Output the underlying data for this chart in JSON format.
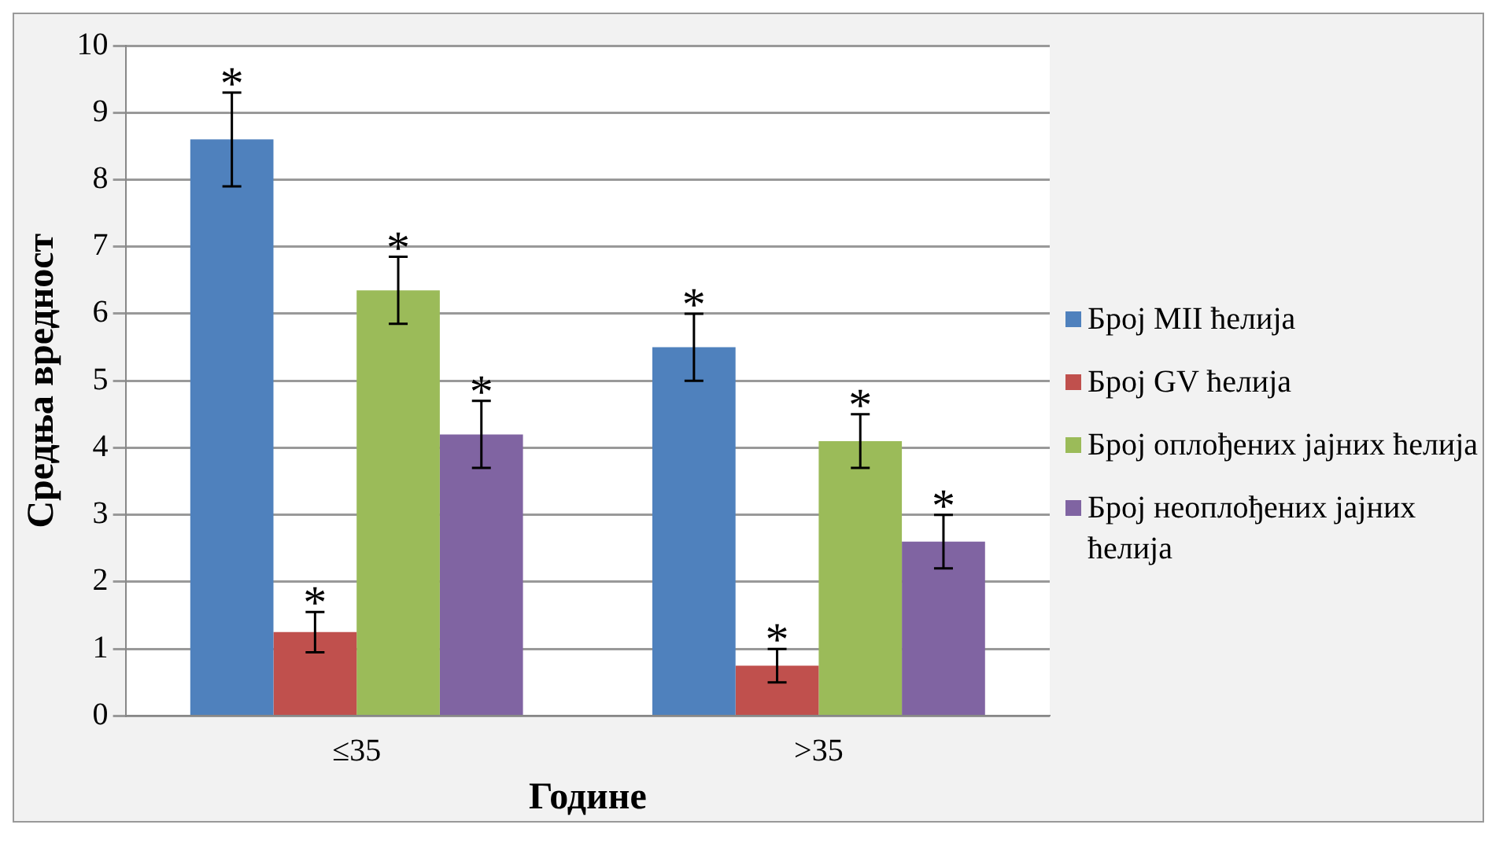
{
  "chart_data": {
    "type": "bar",
    "xlabel": "Године",
    "ylabel": "Средња вредност",
    "categories": [
      "≤35",
      ">35"
    ],
    "series": [
      {
        "name": "Број MII ћелија",
        "color": "#4f81bd",
        "values": [
          8.6,
          5.5
        ],
        "errors": [
          0.7,
          0.5
        ]
      },
      {
        "name": "Број GV ћелија",
        "color": "#c0504d",
        "values": [
          1.25,
          0.75
        ],
        "errors": [
          0.3,
          0.25
        ]
      },
      {
        "name": "Број оплођених јајних ћелија",
        "color": "#9bbb59",
        "values": [
          6.35,
          4.1
        ],
        "errors": [
          0.5,
          0.4
        ]
      },
      {
        "name": "Број неоплођених јајних ћелија",
        "color": "#8064a2",
        "values": [
          4.2,
          2.6
        ],
        "errors": [
          0.5,
          0.4
        ]
      }
    ],
    "ylim": [
      0,
      10
    ],
    "yticks": [
      0,
      1,
      2,
      3,
      4,
      5,
      6,
      7,
      8,
      9,
      10
    ],
    "grid": "y",
    "legend": "right",
    "annotations": [
      "*",
      "*",
      "*",
      "*",
      "*",
      "*",
      "*",
      "*"
    ]
  }
}
